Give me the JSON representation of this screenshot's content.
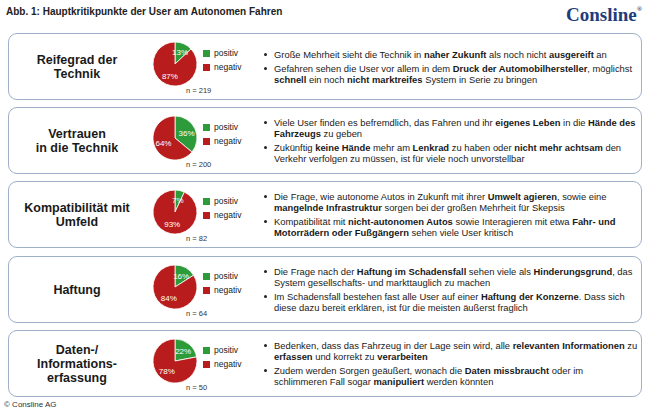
{
  "header": {
    "title": "Abb. 1: Hauptkritikpunkte der User am Autonomen Fahren",
    "logo": "Consline",
    "logo_mark": "®"
  },
  "footer": "© Consline AG",
  "chart_data": [
    {
      "type": "pie",
      "title": "Reifegrad der\nTechnik",
      "categories": [
        "positiv",
        "negativ"
      ],
      "values": [
        13,
        87
      ],
      "value_labels": [
        "13%",
        "87%"
      ],
      "colors": [
        "#2e9b3a",
        "#b81c1c"
      ],
      "data_labels": true,
      "legend": "right",
      "annotations": [
        "n = 219"
      ]
    },
    {
      "type": "pie",
      "title": "Vertrauen\nin die Technik",
      "categories": [
        "positiv",
        "negativ"
      ],
      "values": [
        36,
        64
      ],
      "value_labels": [
        "36%",
        "64%"
      ],
      "colors": [
        "#2e9b3a",
        "#b81c1c"
      ],
      "data_labels": true,
      "legend": "right",
      "annotations": [
        "n = 200"
      ]
    },
    {
      "type": "pie",
      "title": "Kompatibilität mit\nUmfeld",
      "categories": [
        "positiv",
        "negativ"
      ],
      "values": [
        7,
        93
      ],
      "value_labels": [
        "7%",
        "93%"
      ],
      "colors": [
        "#2e9b3a",
        "#b81c1c"
      ],
      "data_labels": true,
      "legend": "right",
      "annotations": [
        "n = 82"
      ]
    },
    {
      "type": "pie",
      "title": "Haftung",
      "categories": [
        "positiv",
        "negativ"
      ],
      "values": [
        16,
        84
      ],
      "value_labels": [
        "16%",
        "84%"
      ],
      "colors": [
        "#2e9b3a",
        "#b81c1c"
      ],
      "data_labels": true,
      "legend": "right",
      "annotations": [
        "n = 64"
      ]
    },
    {
      "type": "pie",
      "title": "Daten-/\nInformations-\nerfassung",
      "categories": [
        "positiv",
        "negativ"
      ],
      "values": [
        22,
        78
      ],
      "value_labels": [
        "22%",
        "78%"
      ],
      "colors": [
        "#2e9b3a",
        "#b81c1c"
      ],
      "data_labels": true,
      "legend": "right",
      "annotations": [
        "n = 50"
      ]
    }
  ],
  "bullets": [
    [
      [
        {
          "text": "Große Mehrheit sieht die Technik in "
        },
        {
          "text": "naher Zukunft",
          "bold": true
        },
        {
          "text": " als noch nicht "
        },
        {
          "text": "ausgereift",
          "bold": true
        },
        {
          "text": " an"
        }
      ],
      [
        {
          "text": "Gefahren sehen die User vor allem in dem "
        },
        {
          "text": "Druck der Automobilhersteller",
          "bold": true
        },
        {
          "text": ", möglichst "
        },
        {
          "text": "schnell",
          "bold": true
        },
        {
          "text": " ein noch "
        },
        {
          "text": "nicht marktreifes",
          "bold": true
        },
        {
          "text": " System in Serie zu bringen"
        }
      ]
    ],
    [
      [
        {
          "text": "Viele User finden es befremdlich, das Fahren und ihr "
        },
        {
          "text": "eigenes Leben",
          "bold": true
        },
        {
          "text": " in die "
        },
        {
          "text": "Hände des Fahrzeugs",
          "bold": true
        },
        {
          "text": " zu geben"
        }
      ],
      [
        {
          "text": "Zukünftig "
        },
        {
          "text": "keine Hände",
          "bold": true
        },
        {
          "text": " mehr am "
        },
        {
          "text": "Lenkrad",
          "bold": true
        },
        {
          "text": " zu haben oder "
        },
        {
          "text": "nicht mehr achtsam",
          "bold": true
        },
        {
          "text": " den Verkehr verfolgen zu müssen, ist für viele noch unvorstellbar"
        }
      ]
    ],
    [
      [
        {
          "text": "Die Frage, wie autonome Autos in Zukunft mit ihrer "
        },
        {
          "text": "Umwelt agieren",
          "bold": true
        },
        {
          "text": ", sowie eine "
        },
        {
          "text": "mangelnde Infrastruktur",
          "bold": true
        },
        {
          "text": " sorgen bei der großen Mehrheit für Skepsis"
        }
      ],
      [
        {
          "text": "Kompatibilität mit "
        },
        {
          "text": "nicht-autonomen Autos",
          "bold": true
        },
        {
          "text": " sowie Interagieren mit etwa "
        },
        {
          "text": "Fahr- und Motorrädern oder Fußgängern",
          "bold": true
        },
        {
          "text": " sehen viele User kritisch"
        }
      ]
    ],
    [
      [
        {
          "text": "Die Frage nach der "
        },
        {
          "text": "Haftung im Schadensfall",
          "bold": true
        },
        {
          "text": " sehen viele als "
        },
        {
          "text": "Hinderungsgrund",
          "bold": true
        },
        {
          "text": ", das System gesellschafts- und markttauglich zu machen"
        }
      ],
      [
        {
          "text": "Im Schadensfall bestehen fast alle User auf einer "
        },
        {
          "text": "Haftung der Konzerne",
          "bold": true
        },
        {
          "text": ". Dass sich diese dazu bereit erklären, ist für die meisten äußerst fraglich"
        }
      ]
    ],
    [
      [
        {
          "text": "Bedenken, dass das Fahrzeug in der Lage sein wird, alle "
        },
        {
          "text": "relevanten Informationen",
          "bold": true
        },
        {
          "text": " zu "
        },
        {
          "text": "erfassen",
          "bold": true
        },
        {
          "text": " und korrekt zu "
        },
        {
          "text": "verarbeiten",
          "bold": true
        }
      ],
      [
        {
          "text": "Zudem werden Sorgen geäußert, wonach die "
        },
        {
          "text": "Daten missbraucht",
          "bold": true
        },
        {
          "text": " oder im schlimmeren Fall sogar "
        },
        {
          "text": "manipuliert",
          "bold": true
        },
        {
          "text": " werden könnten"
        }
      ]
    ]
  ]
}
